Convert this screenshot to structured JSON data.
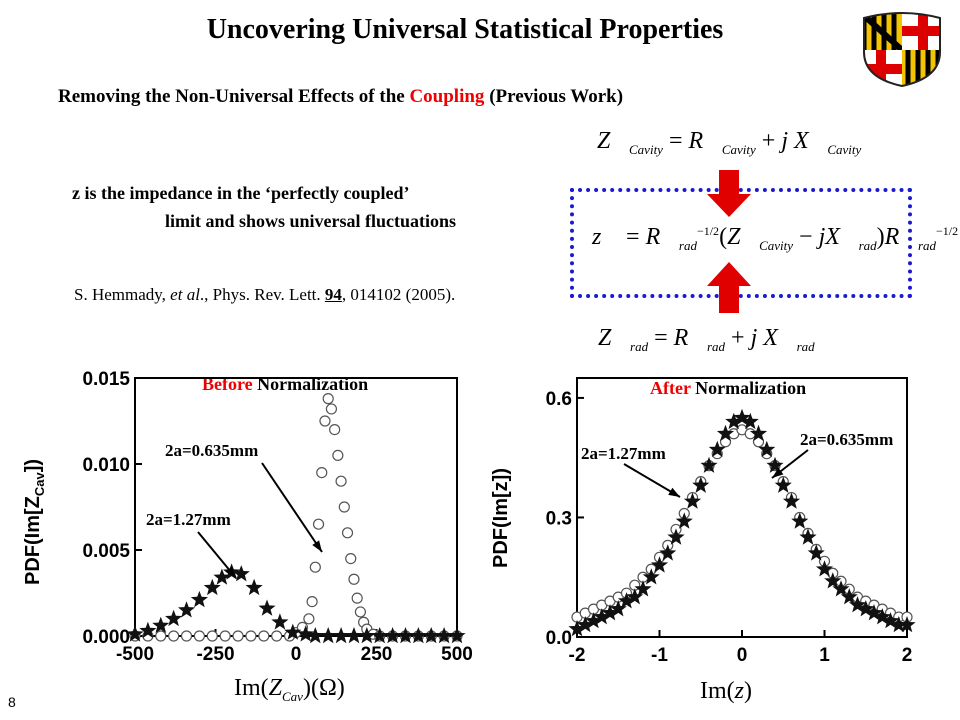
{
  "title": "Uncovering Universal Statistical Properties",
  "subtitle": {
    "part1": "Removing the Non-Universal Effects of the ",
    "highlight": "Coupling",
    "part2": " (Previous Work)"
  },
  "description": {
    "line1": "z is the impedance in the ‘perfectly coupled’",
    "line2": "limit and shows universal fluctuations"
  },
  "citation": {
    "authors": "S. Hemmady, ",
    "etal": "et al",
    "journal": "., Phys. Rev. Lett. ",
    "volume": "94",
    "rest": ", 014102 (2005)."
  },
  "slide_number": "8",
  "colors": {
    "accent_red": "#e00000",
    "box_blue": "#1a1ad0"
  },
  "equations": {
    "cavity": "Z_Cavity = R_Cavity + j X_Cavity",
    "normalized": "z = R_rad^-1/2 (Z_Cavity - j X_rad) R_rad^-1/2",
    "radiation": "Z_rad = R_rad + j X_rad"
  },
  "plot_left": {
    "title_highlight": "Before",
    "title_rest": " Normalization",
    "ylabel": "PDF(Im[Z_Cav])",
    "xlabel": "Im(Z_Cav)(Ω)"
  },
  "plot_right": {
    "title_highlight": "After",
    "title_rest": " Normalization",
    "ylabel": "PDF(Im[z])",
    "xlabel": "Im(z)"
  },
  "chart_data": [
    {
      "type": "scatter",
      "title": "Before Normalization",
      "xlabel": "Im(Z_Cav)(Ω)",
      "ylabel": "PDF(Im[Z_Cav])",
      "xlim": [
        -500,
        500
      ],
      "ylim": [
        0,
        0.015
      ],
      "xticks": [
        "-500",
        "-250",
        "0",
        "250",
        "500"
      ],
      "yticks": [
        "0.000",
        "0.005",
        "0.010",
        "0.015"
      ],
      "annotations": [
        "2a=0.635mm",
        "2a=1.27mm"
      ],
      "series": [
        {
          "name": "2a=0.635mm",
          "marker": "open-circle",
          "x": [
            -500,
            -460,
            -420,
            -380,
            -340,
            -300,
            -260,
            -220,
            -180,
            -140,
            -100,
            -60,
            -20,
            0,
            20,
            40,
            50,
            60,
            70,
            80,
            90,
            100,
            110,
            120,
            130,
            140,
            150,
            160,
            170,
            180,
            190,
            200,
            210,
            220,
            240,
            260,
            300,
            340,
            380,
            420,
            460,
            500
          ],
          "y": [
            0,
            0,
            0,
            0,
            0,
            0,
            0,
            0,
            0,
            0,
            0,
            0,
            0,
            0.0002,
            0.0005,
            0.001,
            0.002,
            0.004,
            0.0065,
            0.0095,
            0.0125,
            0.0138,
            0.0132,
            0.012,
            0.0105,
            0.009,
            0.0075,
            0.006,
            0.0045,
            0.0033,
            0.0022,
            0.0014,
            0.0008,
            0.0004,
            0.0001,
            0,
            0,
            0,
            0,
            0,
            0,
            0
          ]
        },
        {
          "name": "2a=1.27mm",
          "marker": "filled-star",
          "x": [
            -500,
            -460,
            -420,
            -380,
            -340,
            -300,
            -260,
            -230,
            -200,
            -170,
            -130,
            -90,
            -50,
            -10,
            30,
            60,
            100,
            140,
            180,
            220,
            260,
            300,
            340,
            380,
            420,
            460,
            500
          ],
          "y": [
            0.0001,
            0.0003,
            0.0006,
            0.001,
            0.0015,
            0.0021,
            0.0028,
            0.0034,
            0.0037,
            0.0036,
            0.0028,
            0.0016,
            0.0008,
            0.0002,
            0.0001,
            0,
            0,
            0,
            0,
            0,
            0,
            0,
            0,
            0,
            0,
            0,
            0
          ]
        }
      ]
    },
    {
      "type": "scatter",
      "title": "After Normalization",
      "xlabel": "Im(z)",
      "ylabel": "PDF(Im[z])",
      "xlim": [
        -2,
        2
      ],
      "ylim": [
        0,
        0.65
      ],
      "xticks": [
        "-2",
        "-1",
        "0",
        "1",
        "2"
      ],
      "yticks": [
        "0.0",
        "0.3",
        "0.6"
      ],
      "annotations": [
        "2a=1.27mm",
        "2a=0.635mm"
      ],
      "series": [
        {
          "name": "2a=0.635mm",
          "marker": "open-circle",
          "x": [
            -2,
            -1.9,
            -1.8,
            -1.7,
            -1.6,
            -1.5,
            -1.4,
            -1.3,
            -1.2,
            -1.1,
            -1.0,
            -0.9,
            -0.8,
            -0.7,
            -0.6,
            -0.5,
            -0.4,
            -0.3,
            -0.2,
            -0.1,
            0,
            0.1,
            0.2,
            0.3,
            0.4,
            0.5,
            0.6,
            0.7,
            0.8,
            0.9,
            1.0,
            1.1,
            1.2,
            1.3,
            1.4,
            1.5,
            1.6,
            1.7,
            1.8,
            1.9,
            2.0
          ],
          "y": [
            0.05,
            0.06,
            0.07,
            0.08,
            0.09,
            0.1,
            0.11,
            0.13,
            0.15,
            0.17,
            0.2,
            0.23,
            0.27,
            0.31,
            0.35,
            0.39,
            0.43,
            0.46,
            0.49,
            0.51,
            0.52,
            0.51,
            0.49,
            0.46,
            0.43,
            0.39,
            0.35,
            0.3,
            0.26,
            0.22,
            0.19,
            0.16,
            0.14,
            0.12,
            0.1,
            0.09,
            0.08,
            0.07,
            0.06,
            0.05,
            0.05
          ]
        },
        {
          "name": "2a=1.27mm",
          "marker": "filled-star",
          "x": [
            -2,
            -1.9,
            -1.8,
            -1.7,
            -1.6,
            -1.5,
            -1.4,
            -1.3,
            -1.2,
            -1.1,
            -1.0,
            -0.9,
            -0.8,
            -0.7,
            -0.6,
            -0.5,
            -0.4,
            -0.3,
            -0.2,
            -0.1,
            0,
            0.1,
            0.2,
            0.3,
            0.4,
            0.5,
            0.6,
            0.7,
            0.8,
            0.9,
            1.0,
            1.1,
            1.2,
            1.3,
            1.4,
            1.5,
            1.6,
            1.7,
            1.8,
            1.9,
            2.0
          ],
          "y": [
            0.02,
            0.03,
            0.04,
            0.05,
            0.06,
            0.07,
            0.09,
            0.1,
            0.12,
            0.15,
            0.18,
            0.21,
            0.25,
            0.29,
            0.34,
            0.38,
            0.43,
            0.47,
            0.51,
            0.54,
            0.55,
            0.54,
            0.51,
            0.47,
            0.43,
            0.38,
            0.34,
            0.29,
            0.25,
            0.21,
            0.17,
            0.14,
            0.12,
            0.1,
            0.08,
            0.07,
            0.06,
            0.05,
            0.04,
            0.03,
            0.03
          ]
        }
      ]
    }
  ]
}
